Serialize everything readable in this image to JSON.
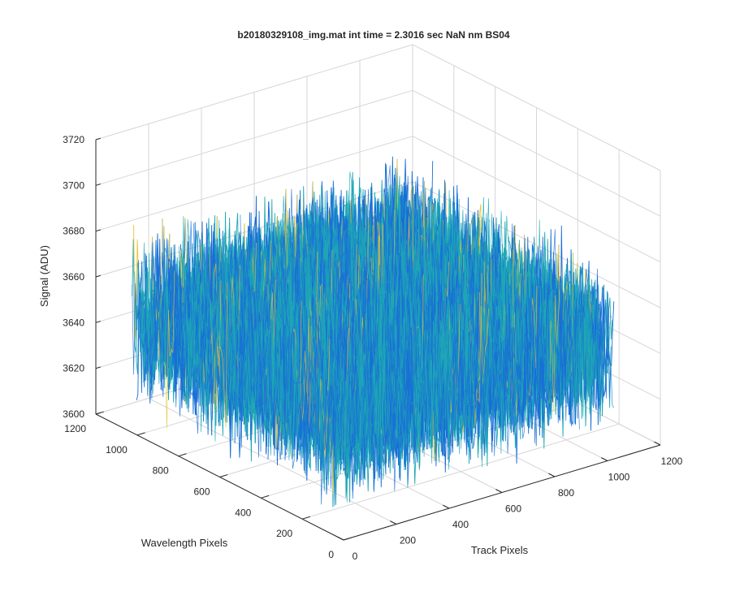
{
  "chart_data": {
    "type": "surface",
    "title": "b20180329108_img.mat int time = 2.3016 sec  NaN nm BS04",
    "zlabel": "Signal (ADU)",
    "xlabel": "Track Pixels",
    "ylabel": "Wavelength Pixels",
    "xlim": [
      0,
      1200
    ],
    "ylim": [
      0,
      1200
    ],
    "zlim": [
      3600,
      3720
    ],
    "x_ticks": [
      "0",
      "200",
      "400",
      "600",
      "800",
      "1000",
      "1200"
    ],
    "y_ticks": [
      "0",
      "200",
      "400",
      "600",
      "800",
      "1000",
      "1200"
    ],
    "z_ticks": [
      "3600",
      "3620",
      "3640",
      "3660",
      "3680",
      "3700",
      "3720"
    ],
    "data_extent": {
      "x": [
        0,
        1024
      ],
      "y": [
        0,
        1024
      ]
    },
    "surface_signal_mean": 3650,
    "surface_signal_range": [
      3615,
      3705
    ],
    "grid": true,
    "colormap": "parula",
    "colors": {
      "low": "#1a6fd6",
      "mid": "#1fa8b5",
      "high": "#e8c33a",
      "axis": "#262626",
      "grid": "#d6d6d6"
    }
  }
}
